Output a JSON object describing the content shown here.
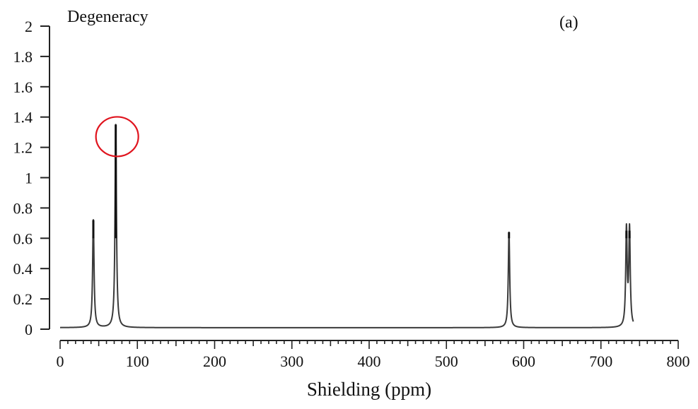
{
  "chart_data": {
    "type": "line",
    "title": "Degeneracy",
    "panel_label": "(a)",
    "xlabel": "Shielding (ppm)",
    "ylabel": "Degeneracy",
    "xlim": [
      0,
      800
    ],
    "ylim": [
      0,
      2
    ],
    "x_ticks": [
      0,
      100,
      200,
      300,
      400,
      500,
      600,
      700,
      800
    ],
    "x_tick_labels": [
      "0",
      "100",
      "200",
      "300",
      "400",
      "500",
      "600",
      "700",
      "800"
    ],
    "y_ticks": [
      0,
      0.2,
      0.4,
      0.6,
      0.8,
      1,
      1.2,
      1.4,
      1.6,
      1.8,
      2
    ],
    "y_tick_labels": [
      "0",
      "0.2",
      "0.4",
      "0.6",
      "0.8",
      "1",
      "1.2",
      "1.4",
      "1.6",
      "1.8",
      "2"
    ],
    "grid": false,
    "legend": null,
    "baseline": 0.01,
    "peaks": [
      {
        "x": 43,
        "y": 0.72
      },
      {
        "x": 72,
        "y": 1.35
      },
      {
        "x": 581,
        "y": 0.64
      },
      {
        "x": 733,
        "y": 0.65
      },
      {
        "x": 737,
        "y": 0.65
      }
    ],
    "x_range_plotted": [
      0,
      742
    ],
    "annotations": [
      {
        "type": "circle",
        "color": "#e0141e",
        "target_peak_x": 72,
        "target_y": 1.28,
        "label": "highlighted peak top"
      }
    ]
  },
  "colors": {
    "line": "#3a3a3a",
    "axis": "#222222",
    "annotation": "#e0141e"
  }
}
